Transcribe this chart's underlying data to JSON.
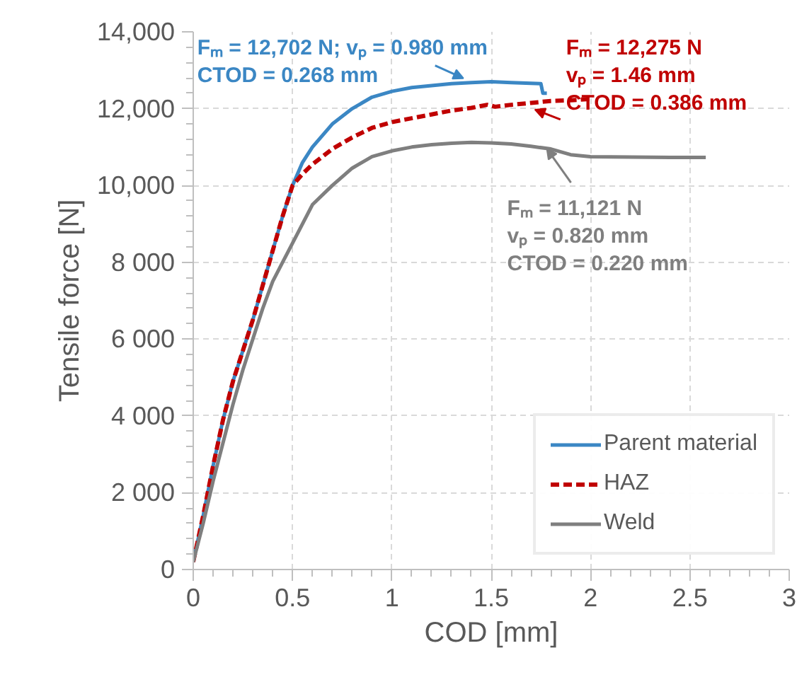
{
  "chart_data": {
    "type": "line",
    "xlabel": "COD [mm]",
    "ylabel": "Tensile force [N]",
    "xlim": [
      0,
      3
    ],
    "ylim": [
      0,
      14000
    ],
    "xticks": [
      0,
      0.5,
      1,
      1.5,
      2,
      2.5,
      3
    ],
    "yticks": [
      {
        "value": 0,
        "label": "0"
      },
      {
        "value": 2000,
        "label": "2 000"
      },
      {
        "value": 4000,
        "label": "4 000"
      },
      {
        "value": 6000,
        "label": "6 000"
      },
      {
        "value": 8000,
        "label": "8 000"
      },
      {
        "value": 10000,
        "label": "10,000"
      },
      {
        "value": 12000,
        "label": "12,000"
      },
      {
        "value": 14000,
        "label": "14,000"
      }
    ],
    "grid": true,
    "legend": "bottom right",
    "series": [
      {
        "name": "Parent material",
        "color": "#3b87c4",
        "line_style": "solid",
        "x": [
          0,
          0.05,
          0.1,
          0.15,
          0.2,
          0.25,
          0.3,
          0.35,
          0.4,
          0.45,
          0.5,
          0.55,
          0.6,
          0.7,
          0.8,
          0.9,
          1.0,
          1.1,
          1.2,
          1.3,
          1.4,
          1.5,
          1.6,
          1.7,
          1.75,
          1.76,
          1.78
        ],
        "values": [
          200,
          1400,
          2700,
          3900,
          4900,
          5700,
          6500,
          7400,
          8300,
          9200,
          10000,
          10600,
          11000,
          11600,
          12000,
          12300,
          12450,
          12550,
          12600,
          12650,
          12680,
          12700,
          12680,
          12660,
          12650,
          12400,
          12400
        ]
      },
      {
        "name": "HAZ",
        "color": "#c00000",
        "line_style": "dashed",
        "x": [
          0,
          0.05,
          0.1,
          0.15,
          0.2,
          0.25,
          0.3,
          0.35,
          0.4,
          0.45,
          0.5,
          0.55,
          0.6,
          0.7,
          0.8,
          0.9,
          1.0,
          1.1,
          1.2,
          1.3,
          1.4,
          1.48,
          1.52,
          1.6,
          1.7,
          1.8,
          1.9,
          2.0
        ],
        "values": [
          200,
          1400,
          2700,
          3900,
          4900,
          5700,
          6500,
          7400,
          8300,
          9200,
          10000,
          10300,
          10550,
          10950,
          11250,
          11500,
          11650,
          11750,
          11850,
          11950,
          12020,
          12100,
          12050,
          12100,
          12150,
          12200,
          12220,
          12250
        ]
      },
      {
        "name": "Weld",
        "color": "#7f7f7f",
        "line_style": "solid",
        "x": [
          0,
          0.05,
          0.1,
          0.15,
          0.2,
          0.25,
          0.3,
          0.35,
          0.4,
          0.45,
          0.5,
          0.6,
          0.7,
          0.8,
          0.9,
          1.0,
          1.1,
          1.2,
          1.3,
          1.4,
          1.5,
          1.6,
          1.7,
          1.8,
          1.9,
          2.0,
          2.2,
          2.4,
          2.58
        ],
        "values": [
          200,
          1200,
          2300,
          3300,
          4300,
          5200,
          6000,
          6800,
          7500,
          8000,
          8500,
          9500,
          10000,
          10450,
          10750,
          10900,
          11000,
          11060,
          11100,
          11120,
          11110,
          11080,
          11020,
          10950,
          10800,
          10750,
          10740,
          10730,
          10730
        ]
      }
    ],
    "annotations": [
      {
        "text": "Fₘ = 12,702 N; vₚ = 0.980 mm\nCTOD = 0.268 mm",
        "x": 1.36,
        "y": 12790
      },
      {
        "text": "Fₘ = 12,275 N\nvₚ = 1.46 mm\nCTOD = 0.386 mm",
        "x": 1.72,
        "y": 11975
      },
      {
        "text": "Fₘ = 11,121 N\nvₚ = 0.820 mm\nCTOD = 0.220 mm",
        "x": 1.78,
        "y": 10960
      }
    ]
  }
}
